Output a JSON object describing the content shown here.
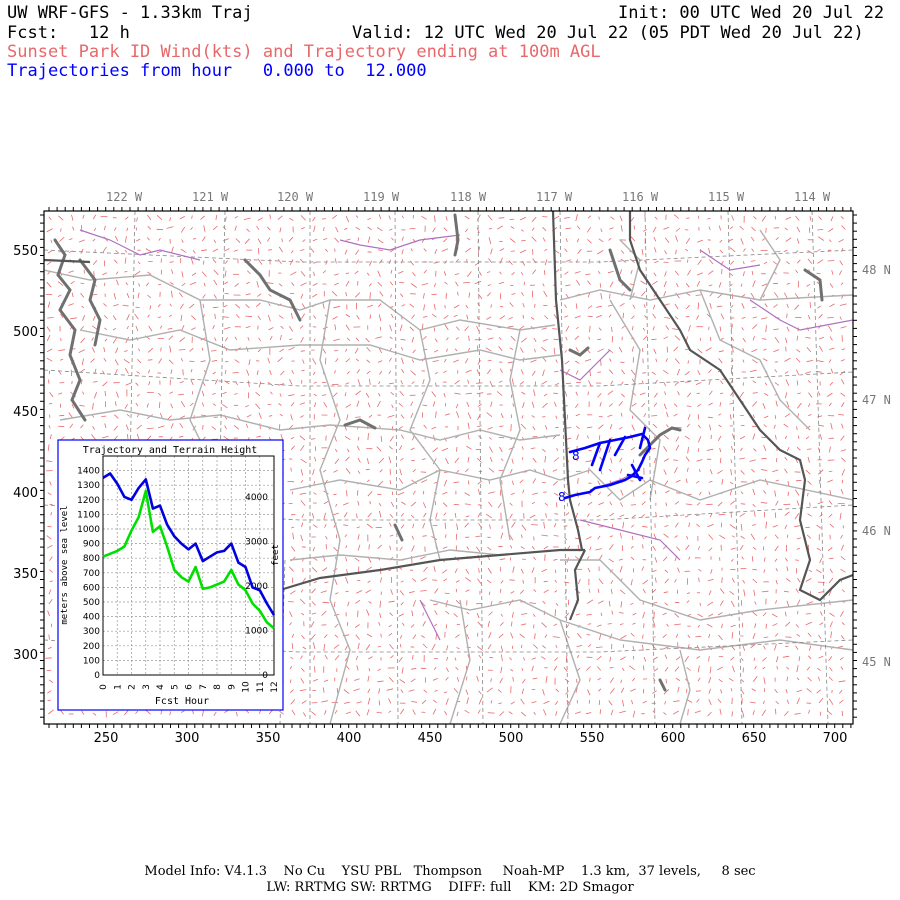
{
  "header": {
    "model_title": "UW WRF-GFS - 1.33km Traj",
    "init": "Init: 00 UTC Wed 20 Jul 22",
    "fcst": "Fcst:   12 h",
    "valid": "Valid: 12 UTC Wed 20 Jul 22 (05 PDT Wed 20 Jul 22)",
    "subtitle": "Sunset Park ID Wind(kts) and Trajectory ending at 100m AGL",
    "traj_range": "Trajectories from hour   0.000 to  12.000"
  },
  "map": {
    "top_lon_labels": [
      "122 W",
      "121 W",
      "120 W",
      "119 W",
      "118 W",
      "117 W",
      "116 W",
      "115 W",
      "114 W"
    ],
    "right_lat_labels": [
      "48 N",
      "47 N",
      "46 N",
      "45 N"
    ],
    "left_axis_ticks": [
      "550",
      "500",
      "450",
      "400",
      "350",
      "300"
    ],
    "bottom_axis_ticks": [
      "250",
      "300",
      "350",
      "400",
      "450",
      "500",
      "550",
      "600",
      "650",
      "700"
    ],
    "trajectory_markers": [
      "8",
      "8"
    ],
    "colors": {
      "wind_barbs": "#e8686a",
      "trajectory": "#0000ff",
      "coast": "#707070",
      "state": "#555555",
      "county": "#b0b0b0",
      "water": "#b070c0"
    }
  },
  "inset": {
    "title": "Trajectory and Terrain Height",
    "ylabel_left": "meters above sea level",
    "ylabel_right": "feet",
    "xlabel": "Fcst Hour",
    "left_ticks": [
      "1400",
      "1300",
      "1200",
      "1100",
      "1000",
      "900",
      "800",
      "700",
      "600",
      "500",
      "400",
      "300",
      "200",
      "100",
      "0"
    ],
    "right_ticks": [
      "4000",
      "3000",
      "2000",
      "1000",
      "0"
    ],
    "x_ticks": [
      "0",
      "1",
      "2",
      "3",
      "4",
      "5",
      "6",
      "7",
      "8",
      "9",
      "10",
      "11",
      "12"
    ]
  },
  "chart_data": {
    "type": "line",
    "x": [
      0,
      0.5,
      1,
      1.5,
      2,
      2.5,
      3,
      3.5,
      4,
      4.5,
      5,
      5.5,
      6,
      6.5,
      7,
      7.5,
      8,
      8.5,
      9,
      9.5,
      10,
      10.5,
      11,
      11.5,
      12
    ],
    "series": [
      {
        "values": [
          1350,
          1380,
          1310,
          1220,
          1200,
          1280,
          1340,
          1140,
          1160,
          1030,
          950,
          900,
          860,
          900,
          780,
          810,
          840,
          850,
          900,
          770,
          740,
          600,
          580,
          490,
          410
        ]
      },
      {
        "values": [
          810,
          830,
          850,
          880,
          990,
          1080,
          1260,
          980,
          1020,
          880,
          720,
          670,
          640,
          740,
          590,
          600,
          620,
          640,
          720,
          620,
          580,
          490,
          440,
          360,
          320
        ]
      }
    ],
    "xlim": [
      0,
      12
    ],
    "ylim": [
      0,
      1500
    ]
  },
  "footer": {
    "line1": "Model Info: V4.1.3    No Cu    YSU PBL   Thompson     Noah-MP    1.3 km,  37 levels,     8 sec",
    "line2": "LW: RRTMG SW: RRTMG    DIFF: full    KM: 2D Smagor"
  }
}
